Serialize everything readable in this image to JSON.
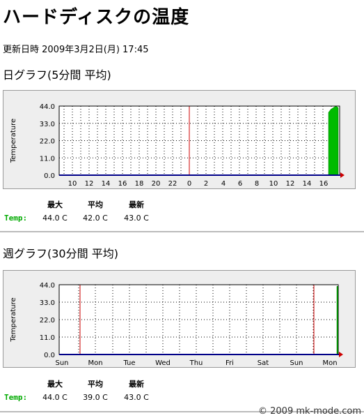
{
  "page": {
    "title": "ハードディスクの温度",
    "updated_label": "更新日時 2009年3月2日(月) 17:45",
    "copyright": "© 2009 mk-mode.com"
  },
  "colors": {
    "grid": "#000000",
    "zero_line": "#000088",
    "day_marker": "#cc0000",
    "series_fill": "#00bb00",
    "arrow": "#cc0000",
    "label_green": "#00aa00"
  },
  "sections": [
    {
      "heading": "日グラフ(5分間 平均)",
      "stats": {
        "headers": [
          "最大",
          "平均",
          "最新"
        ],
        "label": "Temp:",
        "values": [
          "44.0 C",
          "42.0 C",
          "43.0 C"
        ]
      }
    },
    {
      "heading": "週グラフ(30分間 平均)",
      "stats": {
        "headers": [
          "最大",
          "平均",
          "最新"
        ],
        "label": "Temp:",
        "values": [
          "44.0 C",
          "39.0 C",
          "43.0 C"
        ]
      }
    }
  ],
  "chart_data": [
    {
      "type": "area",
      "ylabel": "Temperature",
      "yticks": [
        "0.0",
        "11.0",
        "22.0",
        "33.0",
        "44.0"
      ],
      "ylim": [
        0,
        44
      ],
      "xticks": [
        "10",
        "12",
        "14",
        "16",
        "18",
        "20",
        "22",
        "0",
        "2",
        "4",
        "6",
        "8",
        "10",
        "12",
        "14",
        "16"
      ],
      "grid": true,
      "day_marker_at": "0",
      "series": [
        {
          "values": [
            40,
            42,
            43,
            44,
            43
          ]
        }
      ]
    },
    {
      "type": "area",
      "ylabel": "Temperature",
      "yticks": [
        "0.0",
        "11.0",
        "22.0",
        "33.0",
        "44.0"
      ],
      "ylim": [
        0,
        44
      ],
      "xticks": [
        "Sun",
        "Mon",
        "Tue",
        "Wed",
        "Thu",
        "Fri",
        "Sat",
        "Sun",
        "Mon"
      ],
      "grid": true,
      "day_marker_at": [
        "Sun",
        "Sun"
      ],
      "series": [
        {
          "values": [
            43,
            43
          ]
        }
      ]
    }
  ]
}
